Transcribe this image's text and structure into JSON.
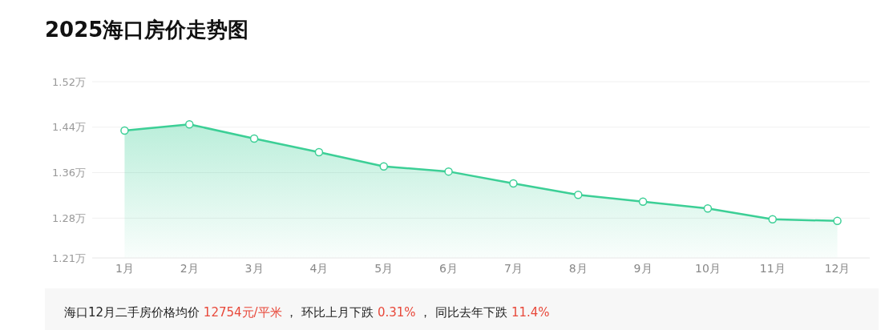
{
  "chart_data": {
    "type": "area",
    "title": "2025海口房价走势图",
    "categories": [
      "1月",
      "2月",
      "3月",
      "4月",
      "5月",
      "6月",
      "7月",
      "8月",
      "9月",
      "10月",
      "11月",
      "12月"
    ],
    "series": [
      {
        "color": "#3ccf96",
        "values": [
          1.434,
          1.445,
          1.42,
          1.396,
          1.371,
          1.362,
          1.341,
          1.321,
          1.309,
          1.297,
          1.278,
          1.275
        ]
      }
    ],
    "ylim": [
      1.21,
      1.52
    ],
    "yticks": [
      {
        "value": 1.21,
        "label": "1.21万"
      },
      {
        "value": 1.28,
        "label": "1.28万"
      },
      {
        "value": 1.36,
        "label": "1.36万"
      },
      {
        "value": 1.44,
        "label": "1.44万"
      },
      {
        "value": 1.52,
        "label": "1.52万"
      }
    ],
    "grid": "y",
    "marker": "circle",
    "annotations": [
      "海口12月二手房价格均价 ",
      "12754元/平米",
      " ， 环比上月下跌 ",
      "0.31%",
      " ， 同比去年下跌 ",
      "11.4%"
    ]
  }
}
